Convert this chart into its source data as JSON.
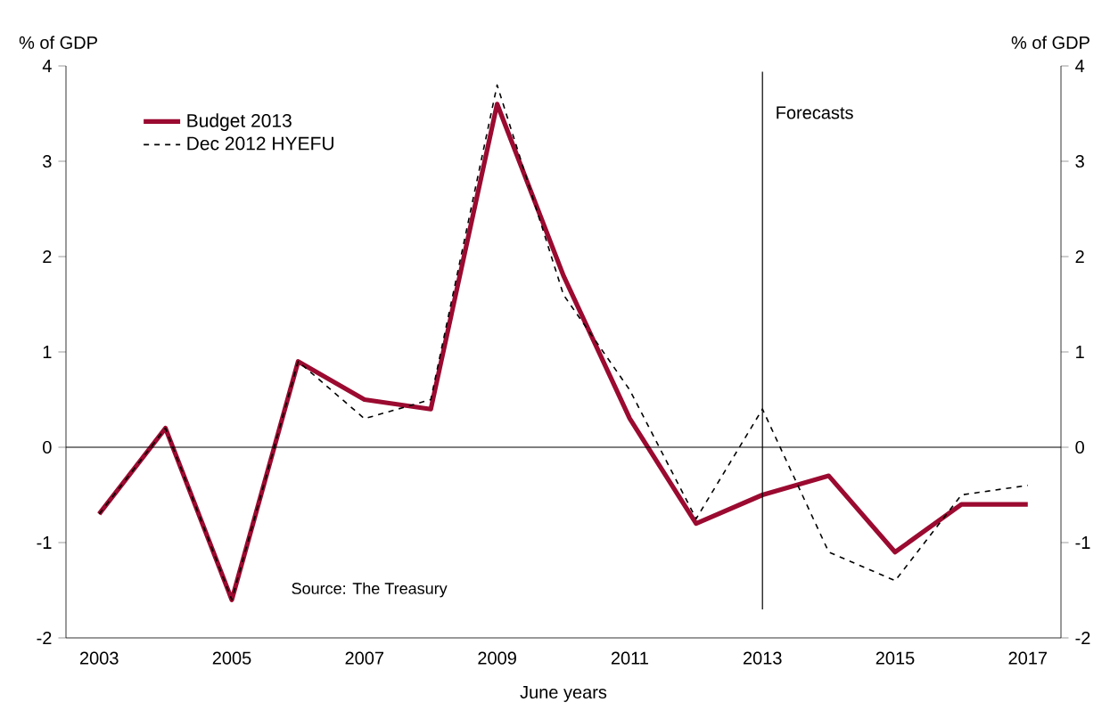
{
  "chart_data": {
    "type": "line",
    "ylabel": "% of GDP",
    "y2label": "% of GDP",
    "xlabel": "June years",
    "categories": [
      "2003",
      null,
      "2005",
      null,
      "2007",
      null,
      "2009",
      null,
      "2011",
      null,
      "2013",
      null,
      "2015",
      null,
      "2017"
    ],
    "series": [
      {
        "name": "Budget 2013",
        "color": "#9b0a30",
        "line_style": "solid",
        "values": [
          -0.7,
          0.2,
          -1.6,
          0.9,
          0.5,
          0.4,
          3.6,
          1.8,
          0.3,
          -0.8,
          -0.5,
          -0.3,
          -1.1,
          -0.6,
          -0.6
        ]
      },
      {
        "name": "Dec 2012 HYEFU",
        "color": "#000000",
        "line_style": "dashed",
        "values": [
          -0.7,
          0.2,
          -1.6,
          0.9,
          0.3,
          0.5,
          3.8,
          1.6,
          0.6,
          -0.75,
          0.4,
          -1.1,
          -1.4,
          -0.5,
          -0.4
        ]
      }
    ],
    "ylim": [
      -2,
      4
    ],
    "yticks": [
      -2,
      -1,
      0,
      1,
      2,
      3,
      4
    ],
    "y2lim": [
      -2,
      4
    ],
    "y2ticks": [
      -2,
      -1,
      0,
      1,
      2,
      3,
      4
    ],
    "ref_lines": [
      {
        "axis": "y",
        "value": 0,
        "label": null
      },
      {
        "axis": "x",
        "value": "2013",
        "label": "Forecasts"
      }
    ],
    "annotations": [
      "Source: The Treasury"
    ],
    "legend": "top left",
    "grid": false,
    "marker": "none"
  }
}
